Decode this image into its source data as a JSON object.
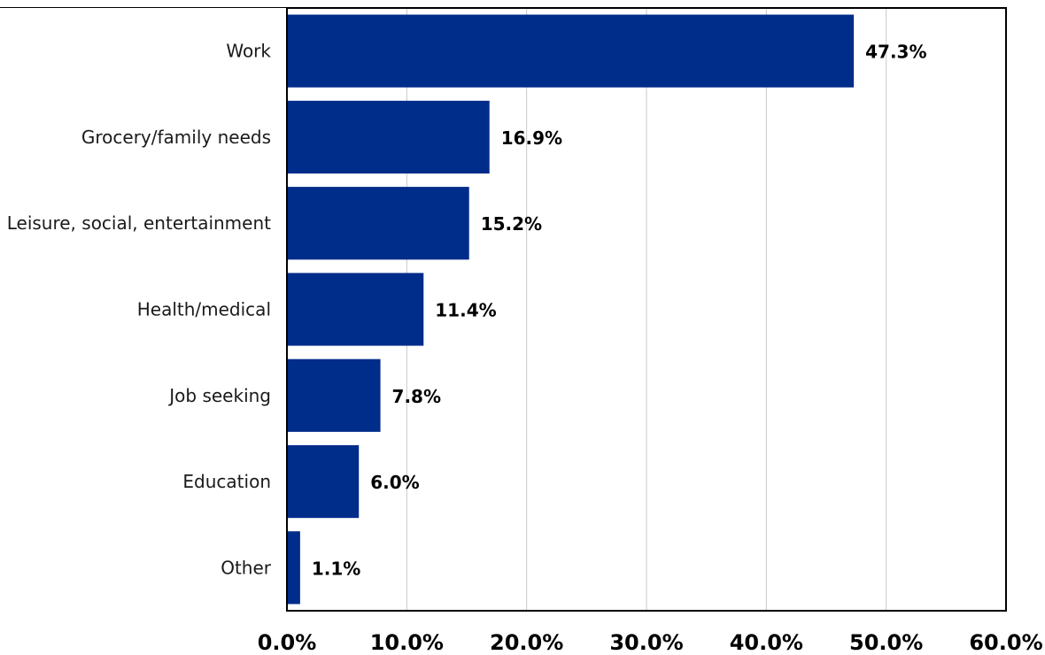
{
  "chart_data": {
    "type": "bar",
    "orientation": "horizontal",
    "categories": [
      "Work",
      "Grocery/family needs",
      "Leisure, social, entertainment",
      "Health/medical",
      "Job seeking",
      "Education",
      "Other"
    ],
    "values": [
      47.3,
      16.9,
      15.2,
      11.4,
      7.8,
      6.0,
      1.1
    ],
    "value_labels": [
      "47.3%",
      "16.9%",
      "15.2%",
      "11.4%",
      "7.8%",
      "6.0%",
      "1.1%"
    ],
    "title": "",
    "xlabel": "",
    "ylabel": "",
    "xlim": [
      0,
      60
    ],
    "x_ticks": [
      0,
      10,
      20,
      30,
      40,
      50,
      60
    ],
    "x_tick_labels": [
      "0.0%",
      "10.0%",
      "20.0%",
      "30.0%",
      "40.0%",
      "50.0%",
      "60.0%"
    ],
    "grid": "vertical",
    "legend": "none",
    "colors": {
      "bar": "#002C8A",
      "gridline": "#C8C8C8",
      "frame": "#000000"
    }
  }
}
